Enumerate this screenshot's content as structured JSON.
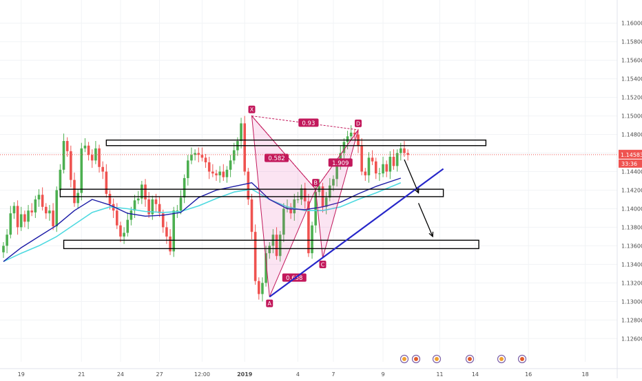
{
  "chart_data": {
    "type": "candlestick",
    "title": "",
    "ylim": [
      1.1235,
      1.1625
    ],
    "y_ticks": [
      "1.16000",
      "1.15800",
      "1.15600",
      "1.15400",
      "1.15200",
      "1.15000",
      "1.14800",
      "1.14600",
      "1.14400",
      "1.14200",
      "1.14000",
      "1.13800",
      "1.13600",
      "1.13400",
      "1.13200",
      "1.13000",
      "1.12800",
      "1.12600"
    ],
    "x_ticks": [
      "19",
      "21",
      "24",
      "27",
      "12:00",
      "2019",
      "4",
      "7",
      "9",
      "11",
      "14",
      "16",
      "18"
    ],
    "price_label": "1.14583",
    "countdown_label": "33:36",
    "current_price": 1.14583,
    "colors": {
      "up": "#4caf50",
      "down": "#ef5350",
      "ma_fast": "#1a1aa6",
      "ma_slow": "#4dd9e0",
      "pattern": "#c2185b",
      "trend": "#2626c9",
      "price_line": "#ef5350"
    },
    "close_series": [
      1.136,
      1.1372,
      1.1395,
      1.1403,
      1.138,
      1.1394,
      1.1386,
      1.1398,
      1.1396,
      1.141,
      1.1415,
      1.1402,
      1.1395,
      1.1398,
      1.1381,
      1.142,
      1.1442,
      1.1473,
      1.1462,
      1.1431,
      1.1406,
      1.1417,
      1.1465,
      1.1468,
      1.1458,
      1.1452,
      1.1465,
      1.1445,
      1.144,
      1.1416,
      1.1405,
      1.1398,
      1.1382,
      1.137,
      1.1374,
      1.1388,
      1.1398,
      1.1409,
      1.1411,
      1.1426,
      1.141,
      1.1394,
      1.141,
      1.1405,
      1.1395,
      1.138,
      1.137,
      1.1354,
      1.1398,
      1.1398,
      1.1412,
      1.1433,
      1.1452,
      1.1458,
      1.146,
      1.1458,
      1.1455,
      1.145,
      1.144,
      1.1438,
      1.1436,
      1.144,
      1.1434,
      1.1442,
      1.1452,
      1.1463,
      1.1473,
      1.1492,
      1.144,
      1.141,
      1.1375,
      1.1322,
      1.1308,
      1.132,
      1.1352,
      1.136,
      1.1372,
      1.1349,
      1.1372,
      1.14,
      1.1402,
      1.1395,
      1.141,
      1.141,
      1.1422,
      1.1408,
      1.1352,
      1.1382,
      1.1418,
      1.1424,
      1.1402,
      1.1412,
      1.1425,
      1.1432,
      1.1446,
      1.146,
      1.1472,
      1.1478,
      1.1482,
      1.148,
      1.1468,
      1.144,
      1.1436,
      1.1455,
      1.1451,
      1.1438,
      1.1438,
      1.1448,
      1.144,
      1.1456,
      1.1446,
      1.146,
      1.1465,
      1.146,
      1.1458
    ],
    "ma_fast": {
      "x": [
        0,
        5,
        10,
        15,
        20,
        25,
        30,
        35,
        40,
        45,
        50,
        55,
        60,
        65,
        70,
        75,
        80,
        85,
        90,
        95,
        100,
        105,
        112
      ],
      "values": [
        1.1343,
        1.1358,
        1.137,
        1.1382,
        1.1398,
        1.141,
        1.1404,
        1.1395,
        1.1392,
        1.1393,
        1.1396,
        1.1412,
        1.142,
        1.1424,
        1.1428,
        1.141,
        1.14,
        1.1399,
        1.1402,
        1.1407,
        1.1416,
        1.1424,
        1.1433
      ]
    },
    "ma_slow": {
      "x": [
        0,
        5,
        10,
        15,
        20,
        25,
        30,
        35,
        40,
        45,
        50,
        55,
        60,
        65,
        70,
        75,
        80,
        85,
        90,
        95,
        100,
        105,
        112
      ],
      "values": [
        1.1343,
        1.1352,
        1.136,
        1.137,
        1.1383,
        1.1396,
        1.1402,
        1.14,
        1.1397,
        1.1396,
        1.1397,
        1.1403,
        1.1411,
        1.1418,
        1.1421,
        1.141,
        1.1402,
        1.1398,
        1.1398,
        1.1402,
        1.141,
        1.1417,
        1.1428
      ]
    },
    "harmonic_pattern": {
      "points": [
        {
          "label": "X",
          "x": 70,
          "y": 1.15
        },
        {
          "label": "A",
          "x": 75,
          "y": 1.1305
        },
        {
          "label": "B",
          "x": 88,
          "y": 1.1421
        },
        {
          "label": "C",
          "x": 90,
          "y": 1.1347
        },
        {
          "label": "D",
          "x": 100,
          "y": 1.1485
        }
      ],
      "ratios": [
        {
          "text": "0.582",
          "x": 77,
          "y": 1.1454
        },
        {
          "text": "0.93",
          "x": 86,
          "y": 1.1492
        },
        {
          "text": "1.909",
          "x": 95,
          "y": 1.1449
        },
        {
          "text": "0.638",
          "x": 82,
          "y": 1.1325
        }
      ]
    },
    "zones": [
      {
        "x0": 29,
        "x1": 136,
        "y0": 1.1468,
        "y1": 1.1474
      },
      {
        "x0": 16,
        "x1": 124,
        "y0": 1.1413,
        "y1": 1.1421
      },
      {
        "x0": 17,
        "x1": 134,
        "y0": 1.1357,
        "y1": 1.1366
      }
    ],
    "trendline": {
      "x0": 75,
      "y0": 1.1305,
      "x1": 124,
      "y1": 1.1443
    },
    "arrows": [
      {
        "x0": 113,
        "y0": 1.1453,
        "x1": 117,
        "y1": 1.1417
      },
      {
        "x0": 117,
        "y0": 1.1406,
        "x1": 121,
        "y1": 1.137
      }
    ],
    "events": [
      1,
      2,
      3,
      4,
      5
    ]
  }
}
